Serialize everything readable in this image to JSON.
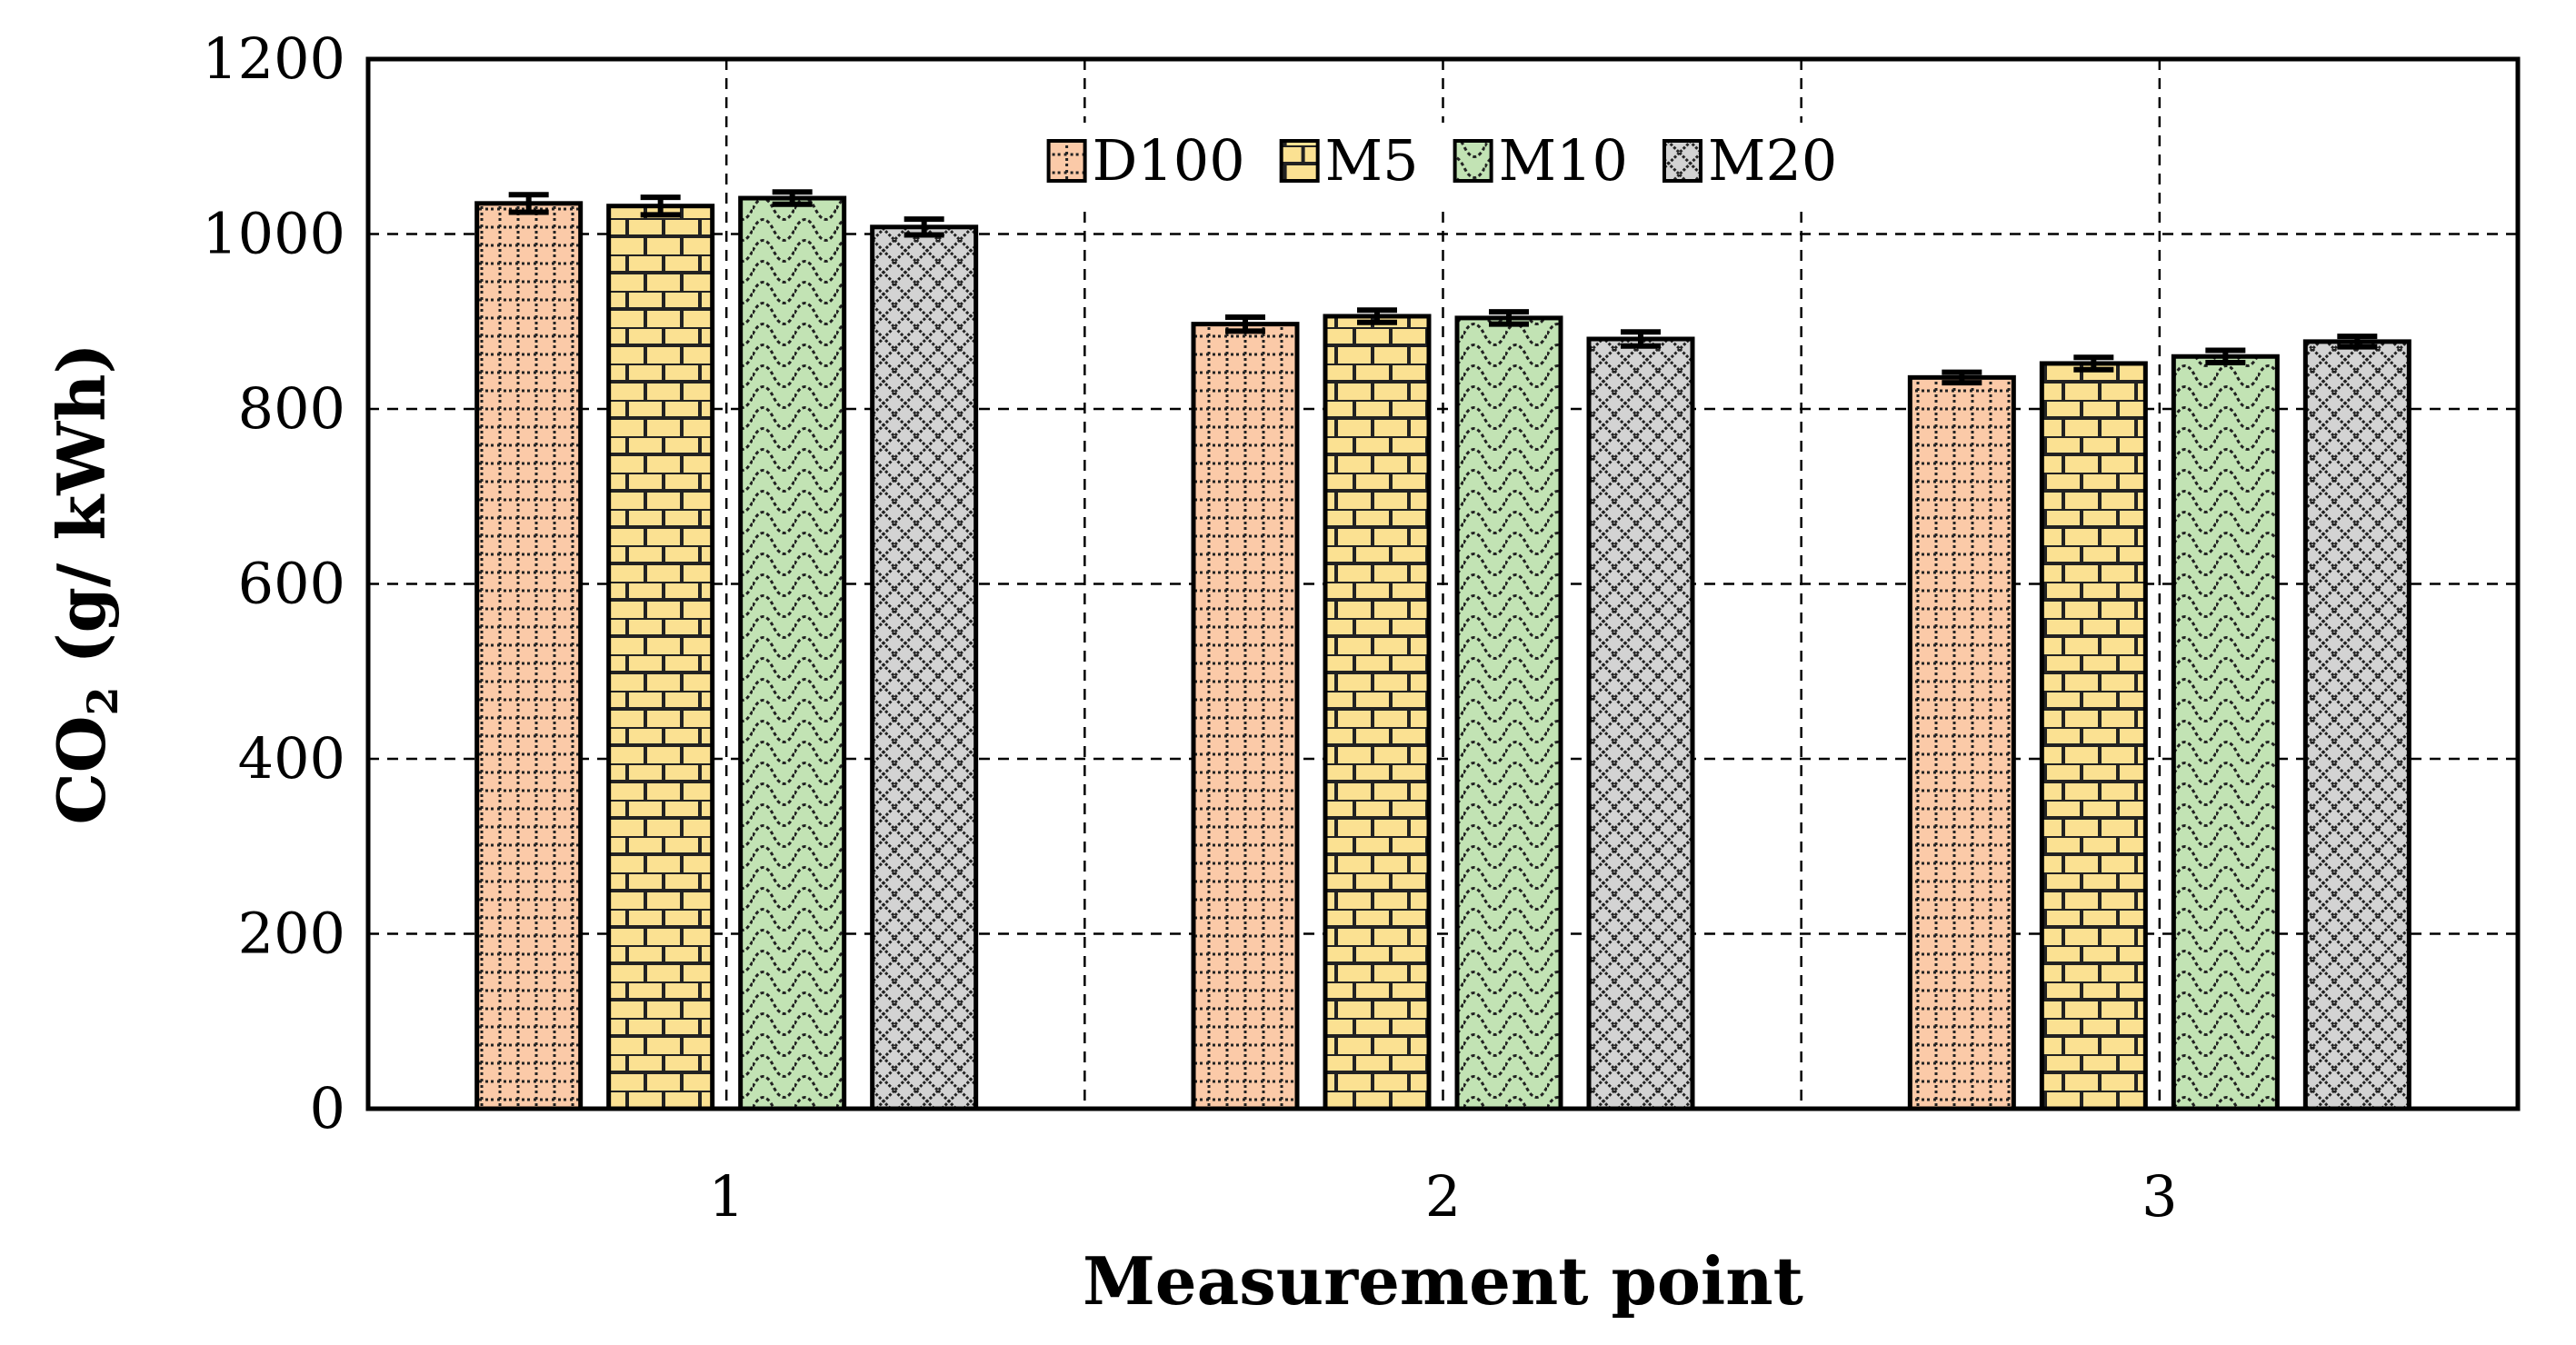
{
  "chart_data": {
    "type": "bar",
    "categories": [
      "1",
      "2",
      "3"
    ],
    "series": [
      {
        "name": "D100",
        "values": [
          1035,
          897,
          836
        ],
        "errors": [
          10,
          8,
          6
        ],
        "color": "#fbcaa8",
        "pattern": "dots"
      },
      {
        "name": "M5",
        "values": [
          1032,
          906,
          852
        ],
        "errors": [
          10,
          7,
          7
        ],
        "color": "#fbe192",
        "pattern": "bricks"
      },
      {
        "name": "M10",
        "values": [
          1041,
          904,
          860
        ],
        "errors": [
          7,
          7,
          7
        ],
        "color": "#c2e3b4",
        "pattern": "waves"
      },
      {
        "name": "M20",
        "values": [
          1008,
          880,
          877
        ],
        "errors": [
          9,
          8,
          6
        ],
        "color": "#d3d3d3",
        "pattern": "lattice"
      }
    ],
    "xlabel": "Measurement point",
    "ylabel_main": "CO",
    "ylabel_sub": "2",
    "ylabel_rest": " (g/ kWh)",
    "ylim": [
      0,
      1200
    ],
    "yticks": [
      0,
      200,
      400,
      600,
      800,
      1000,
      1200
    ],
    "grid": "dashed",
    "legend_position": "top-center"
  }
}
